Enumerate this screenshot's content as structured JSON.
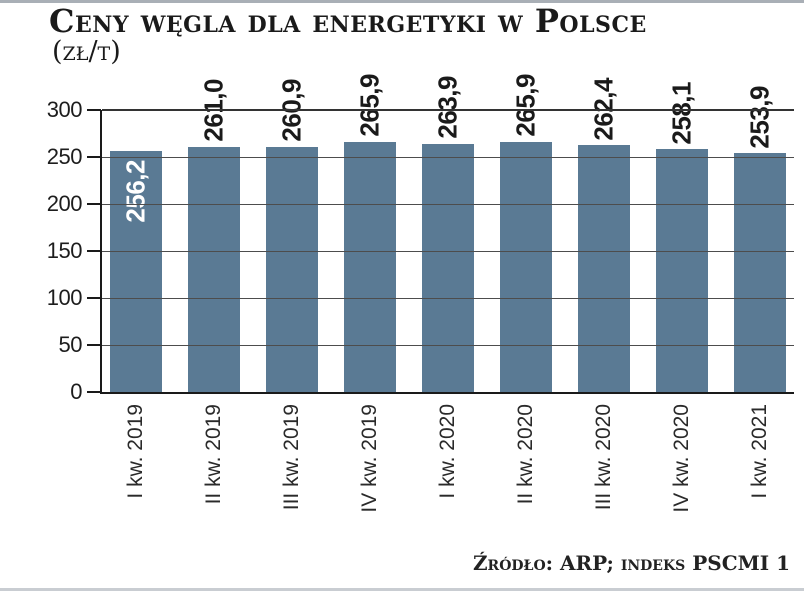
{
  "title": "Ceny węgla dla energetyki w Polsce",
  "unit_label": "(zł/t)",
  "source": "Źródło: ARP; indeks PSCMI 1",
  "colors": {
    "bar": "#5a7a94",
    "bar_label_inside": "#ffffff",
    "bar_label_outside": "#1a1a1a",
    "axis": "#1a1a1a",
    "gridline": "#4d4d4d",
    "top_gridline": "#333333",
    "top_border": "#a9afb6",
    "bottom_border": "#c9cdd2"
  },
  "chart_data": {
    "type": "bar",
    "title": "Ceny węgla dla energetyki w Polsce",
    "ylabel": "(zł/t)",
    "categories": [
      "I kw. 2019",
      "II kw. 2019",
      "III kw. 2019",
      "IV kw. 2019",
      "I kw. 2020",
      "II kw. 2020",
      "III kw. 2020",
      "IV kw. 2020",
      "I kw. 2021"
    ],
    "values": [
      256.2,
      261.0,
      260.9,
      265.9,
      263.9,
      265.9,
      262.4,
      258.1,
      253.9
    ],
    "value_labels": [
      "256,2",
      "261,0",
      "260,9",
      "265,9",
      "263,9",
      "265,9",
      "262,4",
      "258,1",
      "253,9"
    ],
    "ylim": [
      0,
      300
    ],
    "yticks": [
      0,
      50,
      100,
      150,
      200,
      250,
      300
    ],
    "grid": true,
    "legend": "none",
    "first_value_label_inside_bar": true,
    "source": "Źródło: ARP; indeks PSCMI 1"
  }
}
